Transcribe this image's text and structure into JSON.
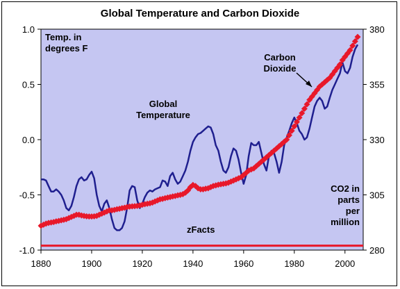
{
  "chart_data": {
    "type": "line",
    "title": "Global Temperature and Carbon Dioxide",
    "xlim": [
      1880,
      2005
    ],
    "xticks": [
      1880,
      1900,
      1920,
      1940,
      1960,
      1980,
      2000
    ],
    "xtick_labels": [
      "1880",
      "1900",
      "1920",
      "1940",
      "1960",
      "1980",
      "2000"
    ],
    "ylim_left": [
      -1.0,
      1.0
    ],
    "yticks_left": [
      -1.0,
      -0.5,
      0.0,
      0.5,
      1.0
    ],
    "ytick_labels_left": [
      "-1.0",
      "-0.5",
      "0.0",
      "0.5",
      "1.0"
    ],
    "ylim_right": [
      280,
      380
    ],
    "yticks_right": [
      280,
      305,
      330,
      355,
      380
    ],
    "ytick_labels_right": [
      "280",
      "305",
      "330",
      "355",
      "380"
    ],
    "grid": false,
    "annotations": {
      "temp_units": [
        "Temp. in",
        "degrees F"
      ],
      "global_temperature": [
        "Global",
        "Temperature"
      ],
      "carbon_dioxide": [
        "Carbon",
        "Dioxide"
      ],
      "co2_units": [
        "CO2 in",
        "parts",
        "per",
        "million"
      ],
      "source": "zFacts"
    },
    "series": [
      {
        "axis": "left",
        "color": "#1f1f8f",
        "x": [
          1880,
          1881,
          1882,
          1883,
          1884,
          1885,
          1886,
          1887,
          1888,
          1889,
          1890,
          1891,
          1892,
          1893,
          1894,
          1895,
          1896,
          1897,
          1898,
          1899,
          1900,
          1901,
          1902,
          1903,
          1904,
          1905,
          1906,
          1907,
          1908,
          1909,
          1910,
          1911,
          1912,
          1913,
          1914,
          1915,
          1916,
          1917,
          1918,
          1919,
          1920,
          1921,
          1922,
          1923,
          1924,
          1925,
          1926,
          1927,
          1928,
          1929,
          1930,
          1931,
          1932,
          1933,
          1934,
          1935,
          1936,
          1937,
          1938,
          1939,
          1940,
          1941,
          1942,
          1943,
          1944,
          1945,
          1946,
          1947,
          1948,
          1949,
          1950,
          1951,
          1952,
          1953,
          1954,
          1955,
          1956,
          1957,
          1958,
          1959,
          1960,
          1961,
          1962,
          1963,
          1964,
          1965,
          1966,
          1967,
          1968,
          1969,
          1970,
          1971,
          1972,
          1973,
          1974,
          1975,
          1976,
          1977,
          1978,
          1979,
          1980,
          1981,
          1982,
          1983,
          1984,
          1985,
          1986,
          1987,
          1988,
          1989,
          1990,
          1991,
          1992,
          1993,
          1994,
          1995,
          1996,
          1997,
          1998,
          1999,
          2000,
          2001,
          2002,
          2003,
          2004,
          2005
        ],
        "values": [
          -0.36,
          -0.36,
          -0.37,
          -0.42,
          -0.47,
          -0.47,
          -0.45,
          -0.47,
          -0.5,
          -0.55,
          -0.62,
          -0.64,
          -0.6,
          -0.52,
          -0.42,
          -0.36,
          -0.34,
          -0.37,
          -0.36,
          -0.32,
          -0.29,
          -0.35,
          -0.5,
          -0.6,
          -0.65,
          -0.58,
          -0.55,
          -0.62,
          -0.72,
          -0.8,
          -0.82,
          -0.82,
          -0.8,
          -0.74,
          -0.62,
          -0.46,
          -0.42,
          -0.43,
          -0.55,
          -0.62,
          -0.58,
          -0.52,
          -0.48,
          -0.46,
          -0.47,
          -0.45,
          -0.44,
          -0.43,
          -0.37,
          -0.38,
          -0.42,
          -0.33,
          -0.3,
          -0.36,
          -0.4,
          -0.38,
          -0.33,
          -0.28,
          -0.2,
          -0.1,
          -0.02,
          0.02,
          0.05,
          0.06,
          0.08,
          0.1,
          0.12,
          0.11,
          0.05,
          -0.05,
          -0.1,
          -0.2,
          -0.28,
          -0.3,
          -0.25,
          -0.15,
          -0.08,
          -0.1,
          -0.18,
          -0.3,
          -0.4,
          -0.32,
          -0.15,
          -0.03,
          -0.05,
          -0.05,
          -0.02,
          -0.12,
          -0.22,
          -0.28,
          -0.15,
          -0.1,
          -0.12,
          -0.2,
          -0.3,
          -0.2,
          -0.05,
          0.02,
          0.08,
          0.15,
          0.2,
          0.15,
          0.08,
          0.05,
          0.0,
          0.02,
          0.1,
          0.2,
          0.3,
          0.35,
          0.38,
          0.35,
          0.28,
          0.3,
          0.38,
          0.45,
          0.5,
          0.55,
          0.6,
          0.7,
          0.62,
          0.6,
          0.65,
          0.75,
          0.82,
          0.86
        ]
      },
      {
        "axis": "right",
        "color": "#e8182a",
        "x": [
          1880,
          1881,
          1882,
          1883,
          1884,
          1885,
          1886,
          1887,
          1888,
          1889,
          1890,
          1891,
          1892,
          1893,
          1894,
          1895,
          1896,
          1897,
          1898,
          1899,
          1900,
          1901,
          1902,
          1903,
          1904,
          1905,
          1906,
          1907,
          1908,
          1909,
          1910,
          1911,
          1912,
          1913,
          1914,
          1915,
          1916,
          1917,
          1918,
          1919,
          1920,
          1921,
          1922,
          1923,
          1924,
          1925,
          1926,
          1927,
          1928,
          1929,
          1930,
          1931,
          1932,
          1933,
          1934,
          1935,
          1936,
          1937,
          1938,
          1939,
          1940,
          1941,
          1942,
          1943,
          1944,
          1945,
          1946,
          1947,
          1948,
          1949,
          1950,
          1951,
          1952,
          1953,
          1954,
          1955,
          1956,
          1957,
          1958,
          1959,
          1960,
          1961,
          1962,
          1963,
          1964,
          1965,
          1966,
          1967,
          1968,
          1969,
          1970,
          1971,
          1972,
          1973,
          1974,
          1975,
          1976,
          1977,
          1978,
          1979,
          1980,
          1981,
          1982,
          1983,
          1984,
          1985,
          1986,
          1987,
          1988,
          1989,
          1990,
          1991,
          1992,
          1993,
          1994,
          1995,
          1996,
          1997,
          1998,
          1999,
          2000,
          2001,
          2002,
          2003,
          2004,
          2005
        ],
        "values": [
          291,
          291.5,
          292,
          292.3,
          292.5,
          292.7,
          293,
          293.2,
          293.5,
          293.7,
          294,
          294.5,
          295,
          295.5,
          296,
          296,
          295.7,
          295.5,
          295.3,
          295.2,
          295.2,
          295.3,
          295.5,
          296,
          296.5,
          297,
          297.5,
          298,
          298,
          298.2,
          298.5,
          298.7,
          299,
          299.2,
          299.5,
          299.7,
          299.8,
          299.9,
          300,
          300.2,
          300.5,
          300.8,
          301,
          301.2,
          301.5,
          302,
          302.5,
          303,
          303.2,
          303.5,
          303.8,
          304,
          304.3,
          304.5,
          304.8,
          305,
          305.3,
          306,
          307,
          308.5,
          309.5,
          309,
          308,
          307.5,
          307.5,
          307.8,
          308,
          308.5,
          309,
          309.3,
          309.6,
          309.8,
          310,
          310.2,
          310.5,
          311,
          311.5,
          312,
          312.5,
          313,
          314,
          315,
          316,
          316.5,
          317,
          318,
          319,
          320,
          321,
          322,
          323,
          324,
          325,
          326,
          327,
          328,
          329,
          330,
          332,
          334,
          336,
          338,
          340,
          342,
          344,
          346,
          348,
          349.5,
          351,
          352.5,
          354,
          355,
          356,
          357,
          358,
          359.5,
          361,
          362.5,
          364,
          366,
          367.5,
          369,
          370.5,
          372.5,
          374.5,
          376.5
        ]
      }
    ]
  }
}
